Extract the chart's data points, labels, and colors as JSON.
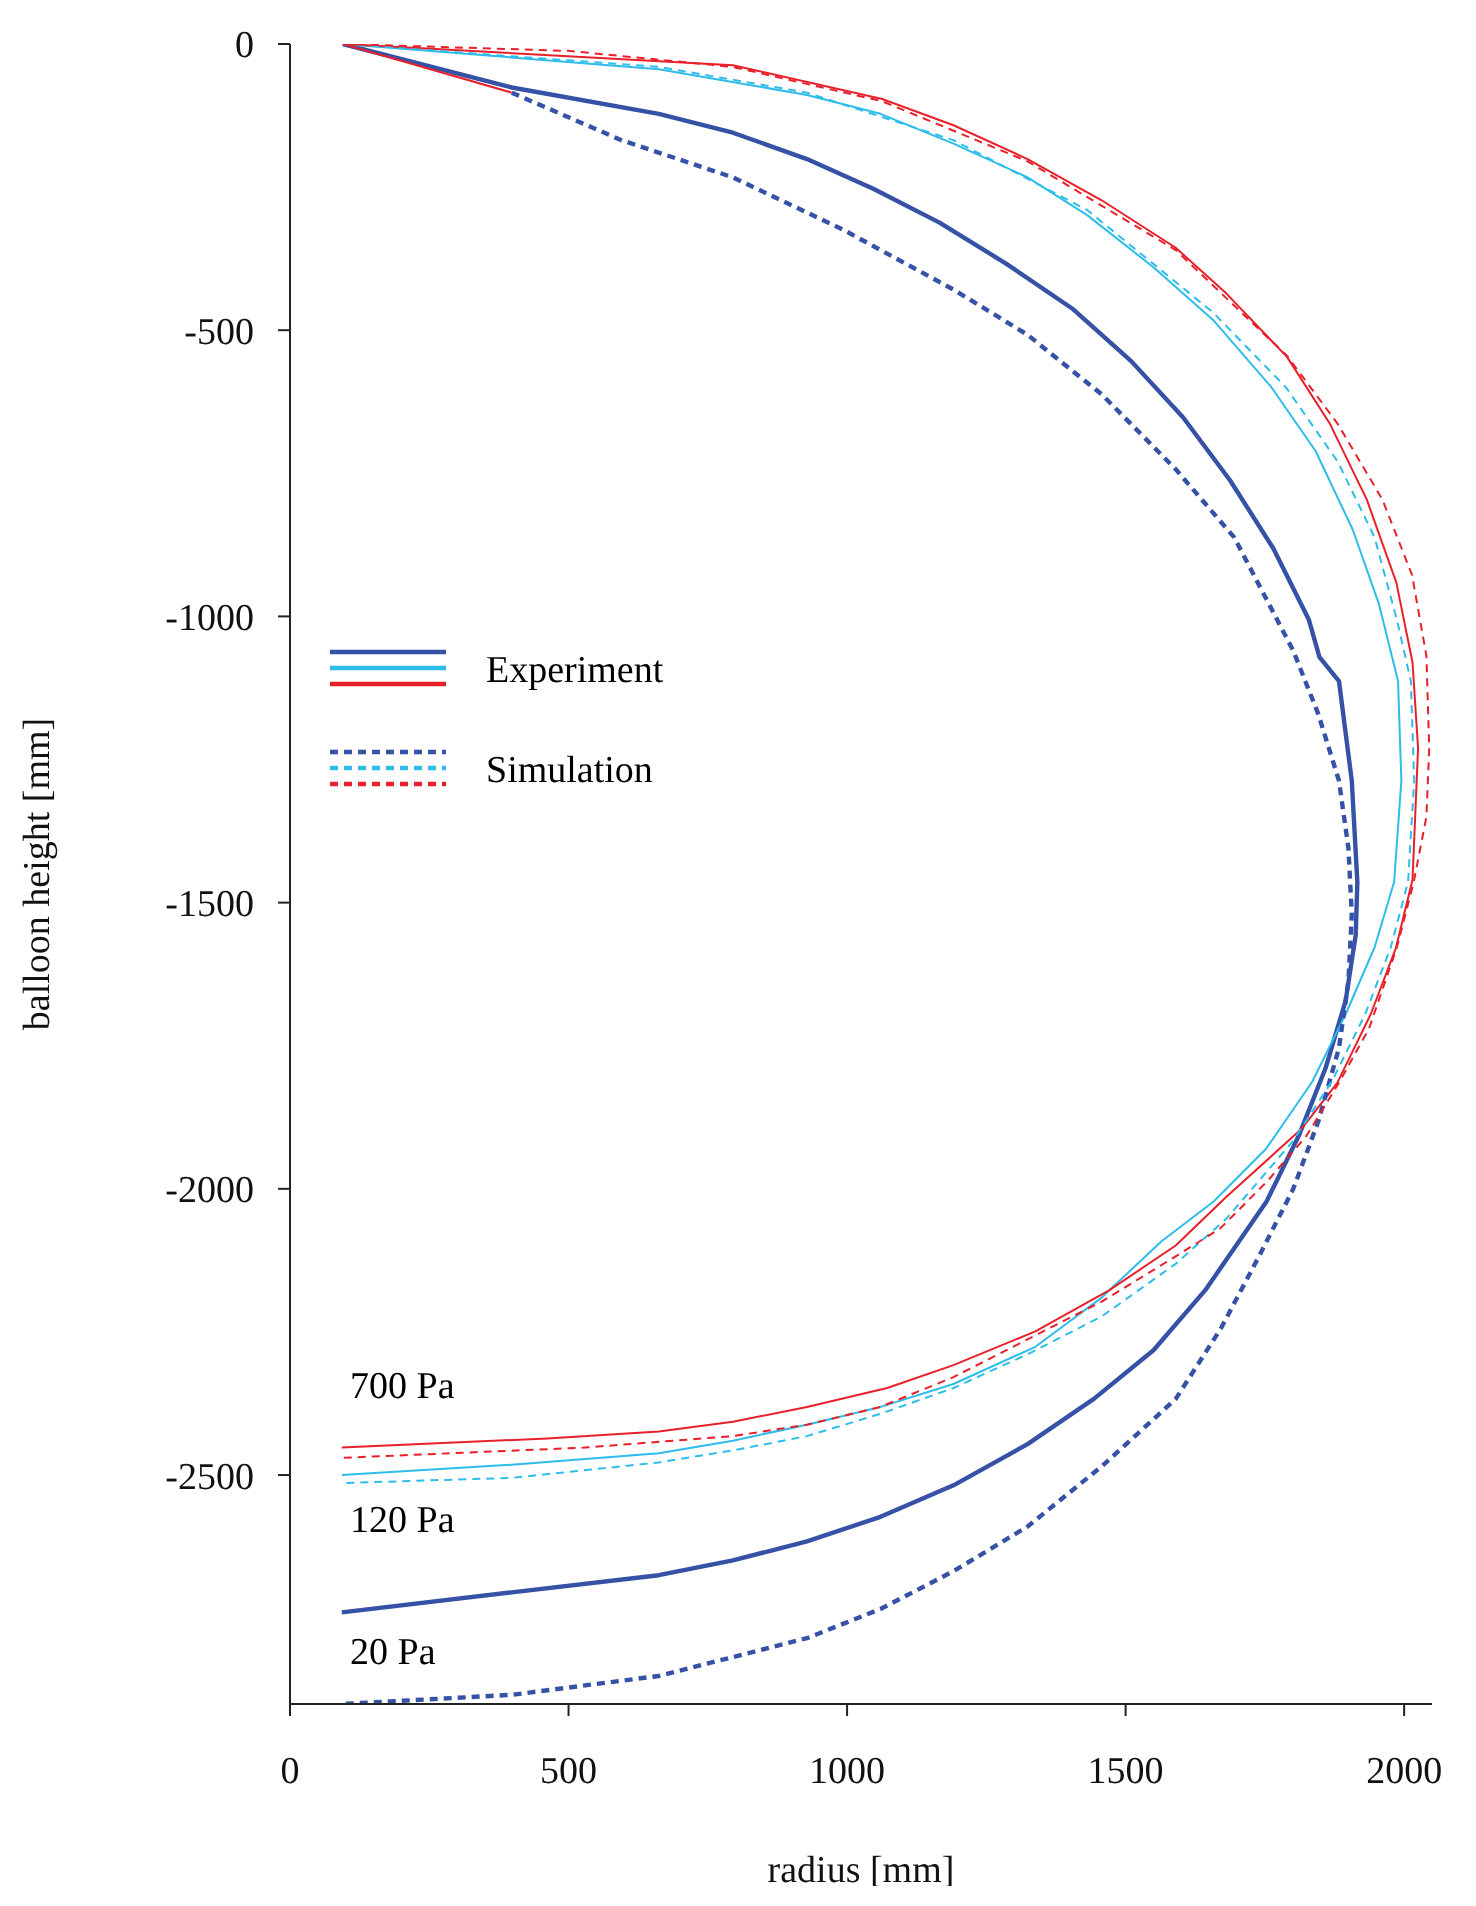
{
  "chart_data": {
    "type": "line",
    "xlabel": "radius [mm]",
    "ylabel": "balloon height [mm]",
    "xlim": [
      0,
      2050
    ],
    "ylim": [
      -2900,
      0
    ],
    "xticks": [
      0,
      500,
      1000,
      1500,
      2000
    ],
    "yticks": [
      0,
      -500,
      -1000,
      -1500,
      -2000,
      -2500
    ],
    "grid": false,
    "legend": "left",
    "marker": "none",
    "annotations": [
      "700 Pa",
      "120 Pa",
      "20 Pa"
    ],
    "series": [
      {
        "name": "Experiment",
        "color": "#3652a6",
        "line_style": "solid",
        "x": [
          95,
          398,
          662,
          795,
          928,
          1047,
          1166,
          1286,
          1404,
          1510,
          1603,
          1688,
          1765,
          1829,
          1848,
          1883,
          1906,
          1916,
          1913,
          1895,
          1859,
          1811,
          1753,
          1722,
          1643,
          1550,
          1443,
          1324,
          1191,
          1060,
          928,
          795,
          662,
          398,
          93
        ],
        "values": [
          0,
          -76,
          -122,
          -155,
          -201,
          -253,
          -312,
          -384,
          -462,
          -554,
          -652,
          -763,
          -881,
          -1006,
          -1071,
          -1113,
          -1287,
          -1464,
          -1557,
          -1671,
          -1789,
          -1907,
          -2022,
          -2066,
          -2177,
          -2282,
          -2367,
          -2446,
          -2518,
          -2573,
          -2616,
          -2649,
          -2675,
          -2705,
          -2740
        ]
      },
      {
        "color": "#2ebdeb",
        "line_style": "solid",
        "x": [
          95,
          662,
          928,
          1060,
          1191,
          1324,
          1431,
          1550,
          1657,
          1762,
          1841,
          1908,
          1955,
          1989,
          1995,
          1982,
          1947,
          1895,
          1835,
          1753,
          1658,
          1564,
          1457,
          1338,
          1191,
          1060,
          928,
          795,
          662,
          398,
          93
        ],
        "values": [
          0,
          -44,
          -89,
          -122,
          -174,
          -233,
          -299,
          -390,
          -482,
          -600,
          -711,
          -849,
          -979,
          -1113,
          -1287,
          -1464,
          -1578,
          -1695,
          -1813,
          -1929,
          -2022,
          -2092,
          -2190,
          -2276,
          -2341,
          -2381,
          -2412,
          -2440,
          -2462,
          -2482,
          -2500
        ]
      },
      {
        "color": "#e8202a",
        "line_style": "solid",
        "x": [
          95,
          795,
          1063,
          1191,
          1324,
          1457,
          1590,
          1681,
          1790,
          1867,
          1933,
          1986,
          2015,
          2025,
          2015,
          1985,
          1940,
          1880,
          1815,
          1681,
          1590,
          1471,
          1338,
          1191,
          1072,
          928,
          795,
          662,
          462,
          93
        ],
        "values": [
          0,
          -37,
          -96,
          -142,
          -201,
          -273,
          -356,
          -436,
          -547,
          -664,
          -796,
          -941,
          -1080,
          -1230,
          -1460,
          -1580,
          -1695,
          -1815,
          -1896,
          -2014,
          -2099,
          -2177,
          -2249,
          -2308,
          -2348,
          -2381,
          -2407,
          -2424,
          -2436,
          -2452
        ]
      },
      {
        "name": "Simulation",
        "color": "#3652a6",
        "line_style": "dotted",
        "x": [
          398,
          595,
          795,
          994,
          1191,
          1324,
          1457,
          1590,
          1695,
          1801,
          1846,
          1883,
          1900,
          1906,
          1900,
          1883,
          1846,
          1801,
          1741,
          1671,
          1590,
          1457,
          1324,
          1191,
          1060,
          928,
          662,
          398,
          93
        ],
        "values": [
          -85,
          -168,
          -233,
          -325,
          -429,
          -508,
          -612,
          -743,
          -862,
          -1060,
          -1171,
          -1287,
          -1405,
          -1521,
          -1637,
          -1754,
          -1882,
          -2000,
          -2115,
          -2244,
          -2367,
          -2485,
          -2590,
          -2668,
          -2734,
          -2785,
          -2851,
          -2884,
          -2900
        ]
      },
      {
        "color": "#2ebdeb",
        "line_style": "dotted",
        "x": [
          95,
          662,
          928,
          1191,
          1431,
          1657,
          1788,
          1881,
          1947,
          1987,
          2012,
          2018,
          2007,
          1976,
          1930,
          1870,
          1800,
          1681,
          1590,
          1457,
          1324,
          1191,
          1060,
          928,
          795,
          662,
          398,
          93
        ],
        "values": [
          0,
          -40,
          -85,
          -168,
          -290,
          -469,
          -600,
          -730,
          -862,
          -1006,
          -1113,
          -1287,
          -1464,
          -1578,
          -1695,
          -1813,
          -1917,
          -2052,
          -2131,
          -2223,
          -2289,
          -2348,
          -2393,
          -2432,
          -2457,
          -2478,
          -2505,
          -2514
        ]
      },
      {
        "color": "#e8202a",
        "line_style": "dotted",
        "x": [
          95,
          500,
          795,
          1063,
          1324,
          1590,
          1790,
          1881,
          1961,
          2014,
          2040,
          2045,
          2040,
          2017,
          1987,
          1937,
          1884,
          1825,
          1755,
          1670,
          1590,
          1457,
          1324,
          1191,
          1060,
          928,
          795,
          529,
          93
        ],
        "values": [
          0,
          -12,
          -40,
          -100,
          -205,
          -360,
          -545,
          -664,
          -796,
          -927,
          -1069,
          -1230,
          -1350,
          -1465,
          -1578,
          -1720,
          -1813,
          -1907,
          -1986,
          -2069,
          -2118,
          -2197,
          -2263,
          -2329,
          -2381,
          -2412,
          -2432,
          -2452,
          -2470
        ]
      },
      {
        "color": "#e8202a",
        "line_style": "solid",
        "x": [
          95,
          398
        ],
        "values": [
          0,
          -85
        ]
      }
    ]
  }
}
